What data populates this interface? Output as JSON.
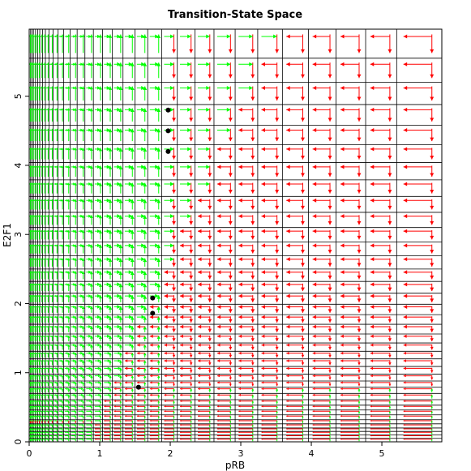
{
  "chart_data": {
    "type": "vector-field",
    "title": "Transition-State Space",
    "xlabel": "pRB",
    "ylabel": "E2F1",
    "xlim": [
      0,
      5.85
    ],
    "ylim": [
      0,
      5.97
    ],
    "x_ticks": [
      0,
      1,
      2,
      3,
      4,
      5
    ],
    "y_ticks": [
      0,
      1,
      2,
      3,
      4,
      5
    ],
    "x_tick_labels": [
      "0",
      "1",
      "2",
      "3",
      "4",
      "5"
    ],
    "y_tick_labels": [
      "0",
      "1",
      "2",
      "3",
      "4",
      "5"
    ],
    "grid": true,
    "grid_x": [
      0.02,
      0.04,
      0.06,
      0.09,
      0.12,
      0.15,
      0.19,
      0.23,
      0.28,
      0.34,
      0.41,
      0.49,
      0.58,
      0.68,
      0.79,
      0.91,
      1.04,
      1.18,
      1.33,
      1.5,
      1.68,
      1.88,
      2.1,
      2.35,
      2.62,
      2.92,
      3.24,
      3.59,
      3.96,
      4.35,
      4.77,
      5.21,
      5.85
    ],
    "grid_y": [
      0.05,
      0.1,
      0.15,
      0.2,
      0.26,
      0.32,
      0.39,
      0.46,
      0.53,
      0.61,
      0.7,
      0.79,
      0.88,
      0.98,
      1.09,
      1.2,
      1.31,
      1.43,
      1.56,
      1.7,
      1.84,
      1.99,
      2.15,
      2.32,
      2.5,
      2.69,
      2.89,
      3.1,
      3.32,
      3.55,
      3.79,
      4.04,
      4.3,
      4.58,
      4.88,
      5.2,
      5.55,
      5.97
    ],
    "fixed_points": [
      {
        "x": 1.55,
        "y": 0.79
      },
      {
        "x": 1.75,
        "y": 1.86
      },
      {
        "x": 1.75,
        "y": 2.08
      },
      {
        "x": 1.97,
        "y": 4.2
      },
      {
        "x": 1.97,
        "y": 4.5
      },
      {
        "x": 1.97,
        "y": 4.8
      }
    ],
    "colors": {
      "increase": "#00ff00",
      "decrease": "#ff0000",
      "grid": "#000000",
      "fixed_point": "#000000"
    }
  }
}
